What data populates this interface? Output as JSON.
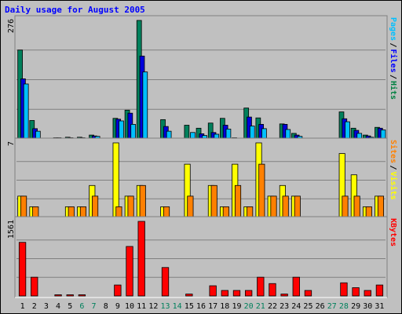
{
  "chart_data": {
    "type": "bar",
    "title": "Daily usage for August 2005",
    "categories": [
      "1",
      "2",
      "3",
      "4",
      "5",
      "6",
      "7",
      "8",
      "9",
      "10",
      "11",
      "12",
      "13",
      "14",
      "15",
      "16",
      "17",
      "18",
      "19",
      "20",
      "21",
      "22",
      "23",
      "24",
      "25",
      "26",
      "27",
      "28",
      "29",
      "30",
      "31"
    ],
    "weekend_days": [
      "6",
      "7",
      "13",
      "14",
      "20",
      "21",
      "27",
      "28"
    ],
    "panels": [
      {
        "name": "hits-files-pages",
        "ymax_label": "276",
        "ylim": [
          0,
          276
        ],
        "legend": [
          {
            "label": "Pages",
            "color": "#00C0FF"
          },
          {
            "label": "Files",
            "color": "#0000FF"
          },
          {
            "label": "Hits",
            "color": "#008040"
          }
        ],
        "series": [
          {
            "name": "Hits",
            "color": "#00805C",
            "values": [
              207,
              43,
              0,
              2,
              4,
              4,
              9,
              0,
              48,
              67,
              276,
              0,
              45,
              0,
              32,
              25,
              37,
              48,
              2,
              72,
              49,
              0,
              35,
              13,
              0,
              0,
              0,
              63,
              25,
              9,
              27
            ]
          },
          {
            "name": "Files",
            "color": "#0000DC",
            "values": [
              140,
              24,
              0,
              1,
              2,
              2,
              7,
              0,
              46,
              60,
              193,
              0,
              29,
              0,
              0,
              12,
              15,
              32,
              0,
              51,
              34,
              0,
              34,
              9,
              0,
              0,
              0,
              47,
              20,
              7,
              25
            ]
          },
          {
            "name": "Pages",
            "color": "#00C0FF",
            "values": [
              128,
              18,
              0,
              0,
              0,
              0,
              6,
              0,
              42,
              34,
              156,
              0,
              18,
              0,
              15,
              8,
              11,
              23,
              0,
              30,
              24,
              0,
              22,
              6,
              0,
              0,
              0,
              40,
              13,
              4,
              21
            ]
          }
        ]
      },
      {
        "name": "visits-sites",
        "ymax_label": "7",
        "ylim": [
          0,
          7
        ],
        "legend": [
          {
            "label": "Sites",
            "color": "#FF8000"
          },
          {
            "label": "Visits",
            "color": "#FFFF00"
          }
        ],
        "series": [
          {
            "name": "Visits",
            "color": "#FFFF00",
            "values": [
              2,
              1,
              0,
              0,
              1,
              1,
              3,
              0,
              7,
              2,
              3,
              0,
              1,
              0,
              5,
              0,
              3,
              1,
              5,
              1,
              7,
              2,
              3,
              2,
              0,
              0,
              0,
              6,
              4,
              1,
              2
            ]
          },
          {
            "name": "Sites",
            "color": "#FF8000",
            "values": [
              2,
              1,
              0,
              0,
              1,
              1,
              2,
              0,
              1,
              2,
              3,
              0,
              1,
              0,
              2,
              0,
              3,
              1,
              3,
              1,
              5,
              2,
              2,
              2,
              0,
              0,
              0,
              2,
              2,
              1,
              2
            ]
          }
        ]
      },
      {
        "name": "kbytes",
        "ymax_label": "1561",
        "ylim": [
          0,
          1561
        ],
        "legend": [
          {
            "label": "KBytes",
            "color": "#FF0000"
          }
        ],
        "series": [
          {
            "name": "KBytes",
            "color": "#FF0000",
            "values": [
              1122,
              392,
              0,
              10,
              20,
              20,
              0,
              0,
              229,
              1036,
              1561,
              0,
              595,
              0,
              40,
              0,
              213,
              115,
              115,
              115,
              392,
              259,
              40,
              392,
              115,
              0,
              0,
              275,
              173,
              115,
              229
            ]
          }
        ]
      }
    ]
  }
}
